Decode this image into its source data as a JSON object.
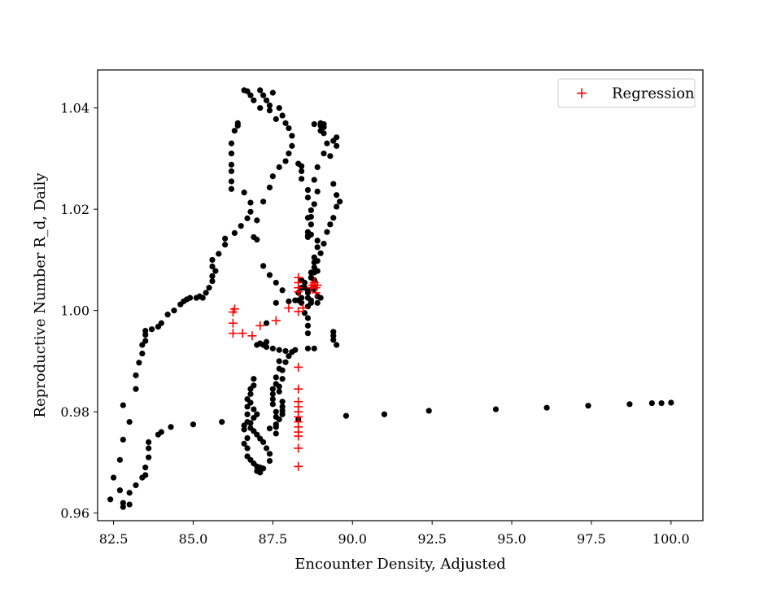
{
  "chart_data": {
    "type": "scatter",
    "title": "",
    "xlabel": "Encounter Density, Adjusted",
    "ylabel": "Reproductive Number R_d, Daily",
    "xlim": [
      82.0,
      101.0
    ],
    "ylim": [
      0.9585,
      1.0475
    ],
    "x_ticks": [
      82.5,
      85.0,
      87.5,
      90.0,
      92.5,
      95.0,
      97.5,
      100.0
    ],
    "x_tick_labels": [
      "82.5",
      "85.0",
      "87.5",
      "90.0",
      "92.5",
      "95.0",
      "97.5",
      "100.0"
    ],
    "y_ticks": [
      0.96,
      0.98,
      1.0,
      1.02,
      1.04
    ],
    "y_tick_labels": [
      "0.96",
      "0.98",
      "1.00",
      "1.02",
      "1.04"
    ],
    "grid": false,
    "legend_position": "upper right",
    "legend": [
      {
        "label": "Regression",
        "marker": "+",
        "color": "#ff0000"
      }
    ],
    "series": [
      {
        "marker": "dot",
        "color": "#000000",
        "points": [
          [
            82.4,
            0.9627
          ],
          [
            82.5,
            0.967
          ],
          [
            82.7,
            0.9645
          ],
          [
            82.8,
            0.962
          ],
          [
            82.8,
            0.9612
          ],
          [
            83.0,
            0.9617
          ],
          [
            83.0,
            0.964
          ],
          [
            83.2,
            0.9655
          ],
          [
            83.4,
            0.967
          ],
          [
            83.5,
            0.969
          ],
          [
            83.5,
            0.9675
          ],
          [
            83.6,
            0.971
          ],
          [
            83.6,
            0.9728
          ],
          [
            83.6,
            0.974
          ],
          [
            83.9,
            0.9755
          ],
          [
            84.0,
            0.976
          ],
          [
            84.3,
            0.977
          ],
          [
            85.0,
            0.9775
          ],
          [
            85.9,
            0.978
          ],
          [
            82.7,
            0.9705
          ],
          [
            82.8,
            0.9745
          ],
          [
            83.0,
            0.978
          ],
          [
            82.8,
            0.9813
          ],
          [
            83.2,
            0.9845
          ],
          [
            83.2,
            0.9872
          ],
          [
            83.3,
            0.9897
          ],
          [
            83.4,
            0.9915
          ],
          [
            83.4,
            0.9932
          ],
          [
            83.5,
            0.994
          ],
          [
            83.5,
            0.9952
          ],
          [
            83.5,
            0.996
          ],
          [
            83.7,
            0.9963
          ],
          [
            83.9,
            0.9968
          ],
          [
            84.0,
            0.9975
          ],
          [
            84.2,
            0.9992
          ],
          [
            84.4,
            1.0
          ],
          [
            84.6,
            1.0012
          ],
          [
            84.7,
            1.0018
          ],
          [
            84.8,
            1.0022
          ],
          [
            84.9,
            1.0025
          ],
          [
            85.1,
            1.0025
          ],
          [
            85.2,
            1.0028
          ],
          [
            85.3,
            1.0025
          ],
          [
            85.4,
            1.0035
          ],
          [
            85.5,
            1.0045
          ],
          [
            85.6,
            1.0058
          ],
          [
            85.6,
            1.0068
          ],
          [
            85.7,
            1.0078
          ],
          [
            85.6,
            1.0087
          ],
          [
            85.6,
            1.01
          ],
          [
            85.8,
            1.0112
          ],
          [
            86.0,
            1.013
          ],
          [
            86.0,
            1.0142
          ],
          [
            86.3,
            1.0153
          ],
          [
            86.5,
            1.0167
          ],
          [
            86.7,
            1.0182
          ],
          [
            86.8,
            1.0195
          ],
          [
            86.8,
            1.0213
          ],
          [
            86.6,
            1.0233
          ],
          [
            86.2,
            1.024
          ],
          [
            86.2,
            1.0255
          ],
          [
            86.2,
            1.0275
          ],
          [
            86.2,
            1.0288
          ],
          [
            86.2,
            1.031
          ],
          [
            86.2,
            1.033
          ],
          [
            86.3,
            1.0355
          ],
          [
            86.4,
            1.0365
          ],
          [
            86.4,
            1.037
          ],
          [
            86.6,
            1.0435
          ],
          [
            86.7,
            1.0433
          ],
          [
            86.8,
            1.0425
          ],
          [
            86.9,
            1.0415
          ],
          [
            87.1,
            1.04
          ],
          [
            87.1,
            1.0435
          ],
          [
            87.2,
            1.0425
          ],
          [
            87.3,
            1.0415
          ],
          [
            87.4,
            1.0405
          ],
          [
            87.5,
            1.043
          ],
          [
            87.4,
            1.0395
          ],
          [
            87.6,
            1.0378
          ],
          [
            87.7,
            1.04
          ],
          [
            87.8,
            1.0385
          ],
          [
            87.9,
            1.037
          ],
          [
            88.0,
            1.036
          ],
          [
            88.1,
            1.0345
          ],
          [
            88.1,
            1.0325
          ],
          [
            88.0,
            1.031
          ],
          [
            87.9,
            1.0295
          ],
          [
            87.7,
            1.0283
          ],
          [
            87.5,
            1.0265
          ],
          [
            87.4,
            1.0243
          ],
          [
            87.2,
            1.0215
          ],
          [
            87.0,
            1.0178
          ],
          [
            86.9,
            1.0145
          ],
          [
            87.0,
            1.014
          ],
          [
            87.2,
            1.0088
          ],
          [
            87.4,
            1.007
          ],
          [
            87.6,
            1.0055
          ],
          [
            87.8,
            1.004
          ],
          [
            88.3,
            1.0035
          ],
          [
            88.4,
            1.0025
          ],
          [
            88.5,
            1.0045
          ],
          [
            88.6,
            1.0035
          ],
          [
            88.4,
            1.006
          ],
          [
            88.5,
            1.0055
          ],
          [
            88.7,
            1.0065
          ],
          [
            88.7,
            1.0075
          ],
          [
            88.8,
            1.0085
          ],
          [
            88.8,
            1.0095
          ],
          [
            88.8,
            1.0105
          ],
          [
            88.9,
            1.0125
          ],
          [
            88.9,
            1.0138
          ],
          [
            88.7,
            1.015
          ],
          [
            88.7,
            1.017
          ],
          [
            88.7,
            1.0185
          ],
          [
            88.8,
            1.021
          ],
          [
            88.6,
            1.0223
          ],
          [
            88.6,
            1.0238
          ],
          [
            88.4,
            1.026
          ],
          [
            88.4,
            1.0275
          ],
          [
            88.4,
            1.0285
          ],
          [
            88.3,
            1.029
          ],
          [
            88.8,
            1.0368
          ],
          [
            89.0,
            1.037
          ],
          [
            89.0,
            1.0365
          ],
          [
            89.1,
            1.0368
          ],
          [
            89.1,
            1.0362
          ],
          [
            89.0,
            1.0355
          ],
          [
            89.1,
            1.035
          ],
          [
            89.2,
            1.033
          ],
          [
            89.1,
            1.031
          ],
          [
            88.9,
            1.0283
          ],
          [
            88.8,
            1.0258
          ],
          [
            88.9,
            1.0235
          ],
          [
            88.7,
            1.0198
          ],
          [
            88.6,
            1.0183
          ],
          [
            88.6,
            1.0155
          ],
          [
            88.6,
            1.0148
          ],
          [
            88.6,
            1.0145
          ],
          [
            89.4,
            1.0335
          ],
          [
            89.5,
            1.0342
          ],
          [
            89.5,
            1.0325
          ],
          [
            89.3,
            1.0305
          ],
          [
            89.4,
            1.025
          ],
          [
            89.5,
            1.0228
          ],
          [
            89.6,
            1.0215
          ],
          [
            89.5,
            1.0205
          ],
          [
            89.4,
            1.0183
          ],
          [
            89.3,
            1.017
          ],
          [
            89.2,
            1.0155
          ],
          [
            89.1,
            1.0132
          ],
          [
            89.0,
            1.0113
          ],
          [
            88.9,
            1.0098
          ],
          [
            88.9,
            1.0078
          ],
          [
            88.8,
            1.0075
          ],
          [
            88.8,
            1.006
          ],
          [
            88.8,
            1.0045
          ],
          [
            88.8,
            1.0042
          ],
          [
            88.0,
            1.0018
          ],
          [
            88.2,
            1.002
          ],
          [
            88.4,
            1.0015
          ],
          [
            88.6,
            1.0025
          ],
          [
            88.7,
            1.002
          ],
          [
            88.7,
            1.0015
          ],
          [
            88.9,
            1.0015
          ],
          [
            88.9,
            1.0028
          ],
          [
            89.0,
            1.0025
          ],
          [
            88.6,
            1.0008
          ],
          [
            88.5,
            0.9995
          ],
          [
            88.6,
            0.9985
          ],
          [
            88.6,
            0.997
          ],
          [
            88.6,
            0.9955
          ],
          [
            88.8,
            0.9925
          ],
          [
            87.6,
            1.0015
          ],
          [
            87.3,
            0.9975
          ],
          [
            88.6,
            1.004
          ],
          [
            88.3,
            1.002
          ],
          [
            88.4,
            1.0045
          ],
          [
            89.4,
            0.9958
          ],
          [
            89.4,
            0.995
          ],
          [
            89.4,
            0.9942
          ],
          [
            89.5,
            0.9932
          ],
          [
            87.0,
            0.9932
          ],
          [
            87.2,
            0.9932
          ],
          [
            87.3,
            0.9928
          ],
          [
            87.5,
            0.9925
          ],
          [
            87.7,
            0.9922
          ],
          [
            87.9,
            0.992
          ],
          [
            88.2,
            0.9922
          ],
          [
            88.6,
            0.9925
          ],
          [
            87.1,
            0.9935
          ],
          [
            87.3,
            0.9938
          ],
          [
            88.1,
            0.9918
          ],
          [
            88.0,
            0.991
          ],
          [
            87.9,
            0.9898
          ],
          [
            87.8,
            0.9882
          ],
          [
            87.8,
            0.9865
          ],
          [
            87.7,
            0.985
          ],
          [
            87.7,
            0.984
          ],
          [
            87.8,
            0.982
          ],
          [
            87.8,
            0.981
          ],
          [
            87.8,
            0.9802
          ],
          [
            87.8,
            0.9795
          ],
          [
            87.7,
            0.9785
          ],
          [
            87.6,
            0.9775
          ],
          [
            87.6,
            0.977
          ],
          [
            87.6,
            0.9757
          ],
          [
            87.7,
            0.99
          ],
          [
            87.7,
            0.9885
          ],
          [
            87.6,
            0.9868
          ],
          [
            87.6,
            0.9855
          ],
          [
            87.5,
            0.9845
          ],
          [
            87.5,
            0.9835
          ],
          [
            87.5,
            0.9825
          ],
          [
            87.5,
            0.9815
          ],
          [
            87.6,
            0.98
          ],
          [
            87.6,
            0.979
          ],
          [
            87.4,
            0.9767
          ],
          [
            86.9,
            0.9865
          ],
          [
            86.8,
            0.9845
          ],
          [
            86.7,
            0.9825
          ],
          [
            86.7,
            0.981
          ],
          [
            86.7,
            0.9795
          ],
          [
            86.7,
            0.978
          ],
          [
            86.6,
            0.9773
          ],
          [
            86.6,
            0.9765
          ],
          [
            86.7,
            0.9748
          ],
          [
            86.6,
            0.9737
          ],
          [
            86.7,
            0.9728
          ],
          [
            86.7,
            0.9712
          ],
          [
            86.8,
            0.9705
          ],
          [
            86.9,
            0.9698
          ],
          [
            87.0,
            0.9692
          ],
          [
            87.1,
            0.969
          ],
          [
            87.0,
            0.9683
          ],
          [
            87.1,
            0.9686
          ],
          [
            87.1,
            0.968
          ],
          [
            87.2,
            0.9688
          ],
          [
            87.4,
            0.9703
          ],
          [
            87.4,
            0.9717
          ],
          [
            87.3,
            0.9728
          ],
          [
            87.2,
            0.974
          ],
          [
            87.1,
            0.9747
          ],
          [
            87.0,
            0.9755
          ],
          [
            86.9,
            0.9762
          ],
          [
            86.8,
            0.9768
          ],
          [
            86.8,
            0.9778
          ],
          [
            86.9,
            0.9788
          ],
          [
            87.0,
            0.9795
          ],
          [
            86.9,
            0.9805
          ],
          [
            86.8,
            0.9818
          ],
          [
            86.8,
            0.9835
          ],
          [
            86.9,
            0.9852
          ],
          [
            88.3,
            0.9785
          ],
          [
            89.8,
            0.9792
          ],
          [
            91.0,
            0.9795
          ],
          [
            92.4,
            0.9802
          ],
          [
            94.5,
            0.9805
          ],
          [
            96.1,
            0.9808
          ],
          [
            97.4,
            0.9812
          ],
          [
            98.7,
            0.9815
          ],
          [
            99.4,
            0.9817
          ],
          [
            99.7,
            0.9817
          ],
          [
            100.0,
            0.9818
          ]
        ]
      },
      {
        "name": "Regression",
        "marker": "+",
        "color": "#ff0000",
        "points": [
          [
            86.25,
            0.9997
          ],
          [
            86.3,
            1.0003
          ],
          [
            86.25,
            0.9975
          ],
          [
            86.25,
            0.9955
          ],
          [
            86.55,
            0.9955
          ],
          [
            86.85,
            0.995
          ],
          [
            87.1,
            0.997
          ],
          [
            87.6,
            0.998
          ],
          [
            88.0,
            1.0005
          ],
          [
            88.3,
            1.0065
          ],
          [
            88.3,
            1.0055
          ],
          [
            88.3,
            1.0045
          ],
          [
            88.3,
            1.0037
          ],
          [
            88.3,
            0.9998
          ],
          [
            88.45,
            1.0005
          ],
          [
            88.7,
            1.0045
          ],
          [
            88.75,
            1.005
          ],
          [
            88.8,
            1.0055
          ],
          [
            88.85,
            1.0045
          ],
          [
            88.9,
            1.005
          ],
          [
            88.85,
            1.0035
          ],
          [
            88.3,
            0.9888
          ],
          [
            88.3,
            0.9845
          ],
          [
            88.3,
            0.982
          ],
          [
            88.3,
            0.981
          ],
          [
            88.3,
            0.98
          ],
          [
            88.3,
            0.979
          ],
          [
            88.3,
            0.978
          ],
          [
            88.3,
            0.977
          ],
          [
            88.3,
            0.976
          ],
          [
            88.3,
            0.9752
          ],
          [
            88.3,
            0.9728
          ],
          [
            88.3,
            0.9692
          ]
        ]
      }
    ]
  }
}
